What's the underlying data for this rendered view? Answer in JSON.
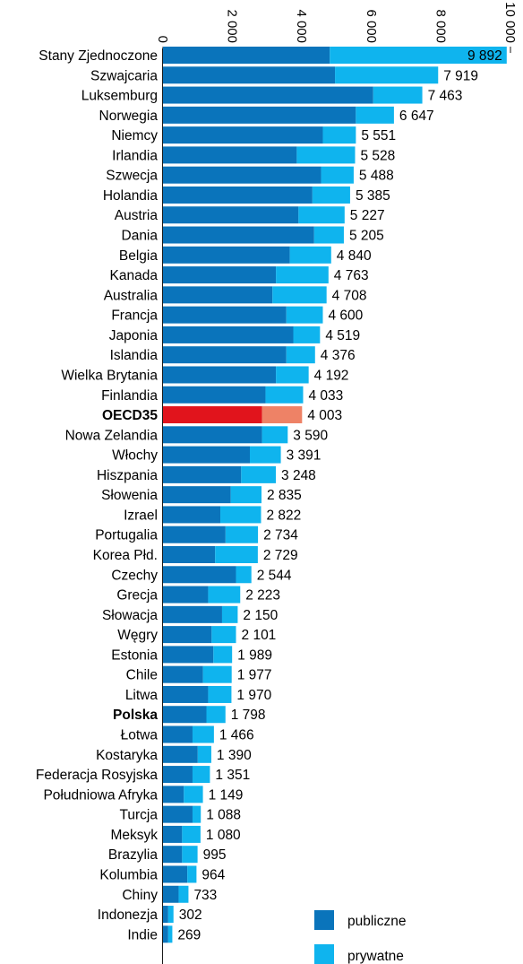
{
  "chart_data": {
    "type": "bar",
    "orientation": "horizontal",
    "stacked": true,
    "xlim": [
      0,
      10000
    ],
    "x_ticks": [
      "0",
      "2 000",
      "4 000",
      "6 000",
      "8 000",
      "10 000"
    ],
    "x_tick_values": [
      0,
      2000,
      4000,
      6000,
      8000,
      10000
    ],
    "categories": [
      "Stany Zjednoczone",
      "Szwajcaria",
      "Luksemburg",
      "Norwegia",
      "Niemcy",
      "Irlandia",
      "Szwecja",
      "Holandia",
      "Austria",
      "Dania",
      "Belgia",
      "Kanada",
      "Australia",
      "Francja",
      "Japonia",
      "Islandia",
      "Wielka Brytania",
      "Finlandia",
      "OECD35",
      "Nowa Zelandia",
      "Włochy",
      "Hiszpania",
      "Słowenia",
      "Izrael",
      "Portugalia",
      "Korea Płd.",
      "Czechy",
      "Grecja",
      "Słowacja",
      "Węgry",
      "Estonia",
      "Chile",
      "Litwa",
      "Polska",
      "Łotwa",
      "Kostaryka",
      "Federacja Rosyjska",
      "Południowa Afryka",
      "Turcja",
      "Meksyk",
      "Brazylia",
      "Kolumbia",
      "Chiny",
      "Indonezja",
      "Indie"
    ],
    "bold_categories": [
      "OECD35",
      "Polska"
    ],
    "highlight_category": "OECD35",
    "totals": [
      9892,
      7919,
      7463,
      6647,
      5551,
      5528,
      5488,
      5385,
      5227,
      5205,
      4840,
      4763,
      4708,
      4600,
      4519,
      4376,
      4192,
      4033,
      4003,
      3590,
      3391,
      3248,
      2835,
      2822,
      2734,
      2729,
      2544,
      2223,
      2150,
      2101,
      1989,
      1977,
      1970,
      1798,
      1466,
      1390,
      1351,
      1149,
      1088,
      1080,
      995,
      964,
      733,
      302,
      269
    ],
    "total_labels": [
      "9 892",
      "7 919",
      "7 463",
      "6 647",
      "5 551",
      "5 528",
      "5 488",
      "5 385",
      "5 227",
      "5 205",
      "4 840",
      "4 763",
      "4 708",
      "4 600",
      "4 519",
      "4 376",
      "4 192",
      "4 033",
      "4 003",
      "3 590",
      "3 391",
      "3 248",
      "2 835",
      "2 822",
      "2 734",
      "2 729",
      "2 544",
      "2 223",
      "2 150",
      "2 101",
      "1 989",
      "1 977",
      "1 970",
      "1 798",
      "1 466",
      "1 390",
      "1 351",
      "1 149",
      "1 088",
      "1 080",
      "995",
      "964",
      "733",
      "302",
      "269"
    ],
    "series": [
      {
        "name": "publiczne",
        "color": "#0a74bb",
        "highlight_color": "#e1141c",
        "values": [
          4800,
          4950,
          6050,
          5550,
          4600,
          3850,
          4550,
          4300,
          3900,
          4350,
          3650,
          3250,
          3150,
          3550,
          3750,
          3550,
          3250,
          2950,
          2850,
          2850,
          2500,
          2250,
          1950,
          1650,
          1800,
          1500,
          2100,
          1300,
          1700,
          1400,
          1450,
          1150,
          1300,
          1250,
          850,
          1000,
          850,
          600,
          850,
          550,
          550,
          700,
          450,
          150,
          150
        ]
      },
      {
        "name": "prywatne",
        "color": "#0fb4ee",
        "highlight_color": "#ee8266",
        "values": [
          5092,
          2969,
          1413,
          1097,
          951,
          1678,
          938,
          1085,
          1327,
          855,
          1190,
          1513,
          1558,
          1050,
          769,
          826,
          942,
          1083,
          1153,
          740,
          891,
          998,
          885,
          1172,
          934,
          1229,
          444,
          923,
          450,
          701,
          539,
          827,
          670,
          548,
          616,
          390,
          501,
          549,
          238,
          530,
          445,
          264,
          283,
          152,
          119
        ]
      }
    ],
    "legend_position": "bottom-right",
    "grid": false
  }
}
